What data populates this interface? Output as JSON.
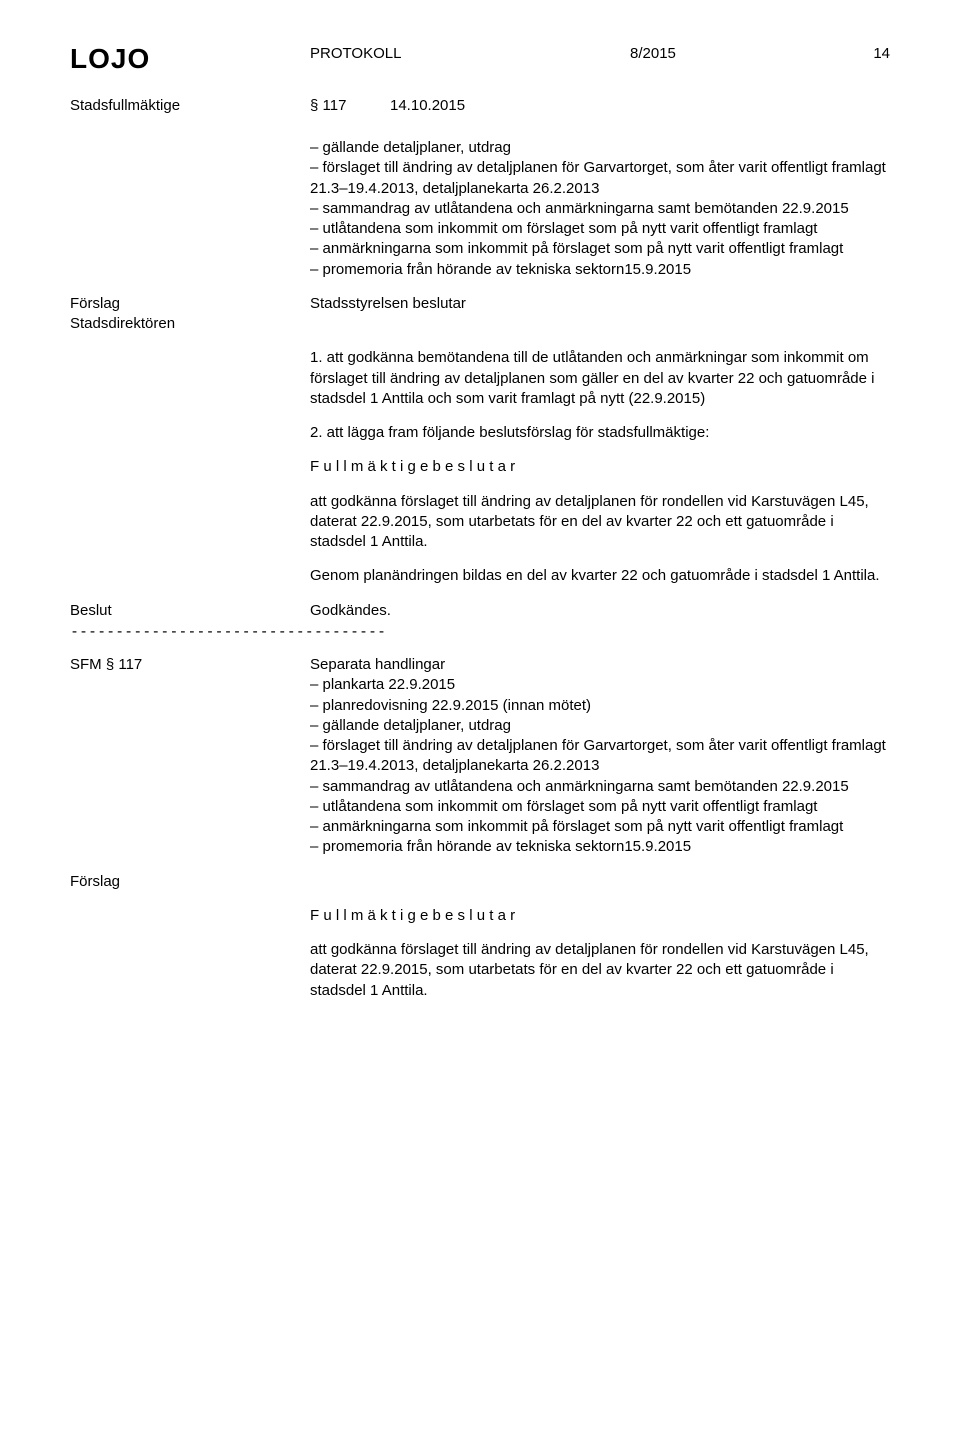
{
  "header": {
    "org": "LOJO",
    "doctype": "PROTOKOLL",
    "docnum": "8/2015",
    "page": "14",
    "body": "Stadsfullmäktige",
    "section": "§ 117",
    "date": "14.10.2015"
  },
  "block1": "– gällande detaljplaner, utdrag\n– förslaget till ändring av detaljplanen för Garvartorget, som åter varit offentligt framlagt 21.3–19.4.2013, detaljplanekarta 26.2.2013\n– sammandrag av utlåtandena och anmärkningarna samt bemötanden 22.9.2015\n– utlåtandena som inkommit om förslaget som på nytt varit offentligt framlagt\n– anmärkningarna som inkommit på förslaget som på nytt varit offentligt framlagt\n– promemoria från hörande av tekniska sektorn15.9.2015",
  "forslag1": {
    "label1": "Förslag",
    "label2": "Stadsdirektören",
    "text": "Stadsstyrelsen beslutar"
  },
  "para1": "1. att godkänna bemötandena till de utlåtanden och anmärkningar som inkommit om förslaget till ändring av detaljplanen som gäller en del av kvarter 22 och gatuområde i stadsdel 1 Anttila och som varit framlagt på nytt (22.9.2015)",
  "para2": "2. att lägga fram följande beslutsförslag för stadsfullmäktige:",
  "fullm": "F u l l m ä k t i g e   b e s l u t a r",
  "para3": "att godkänna förslaget till ändring av detaljplanen för rondellen vid Karstuvägen L45, daterat 22.9.2015, som utarbetats för en del av kvarter 22 och ett gatuområde i stadsdel 1 Anttila.",
  "para4": "Genom planändringen bildas en del av kvarter 22 och gatuområde i stadsdel 1 Anttila.",
  "beslut": {
    "label": "Beslut",
    "text": "Godkändes."
  },
  "dashes": "-----------------------------------",
  "sfm": {
    "label": "SFM § 117",
    "text": "Separata handlingar\n– plankarta 22.9.2015\n– planredovisning 22.9.2015 (innan mötet)\n– gällande detaljplaner, utdrag\n– förslaget till ändring av detaljplanen för Garvartorget, som åter varit offentligt framlagt 21.3–19.4.2013, detaljplanekarta 26.2.2013\n– sammandrag av utlåtandena och anmärkningarna samt bemötanden 22.9.2015\n– utlåtandena som inkommit om förslaget som på nytt varit offentligt framlagt\n– anmärkningarna som inkommit på förslaget som på nytt varit offentligt framlagt\n– promemoria från hörande av tekniska sektorn15.9.2015"
  },
  "forslag2": {
    "label": "Förslag"
  },
  "para5": "att godkänna förslaget till ändring av detaljplanen för rondellen vid Karstuvägen L45, daterat 22.9.2015, som utarbetats för en del av kvarter 22 och ett gatuområde i stadsdel 1 Anttila."
}
